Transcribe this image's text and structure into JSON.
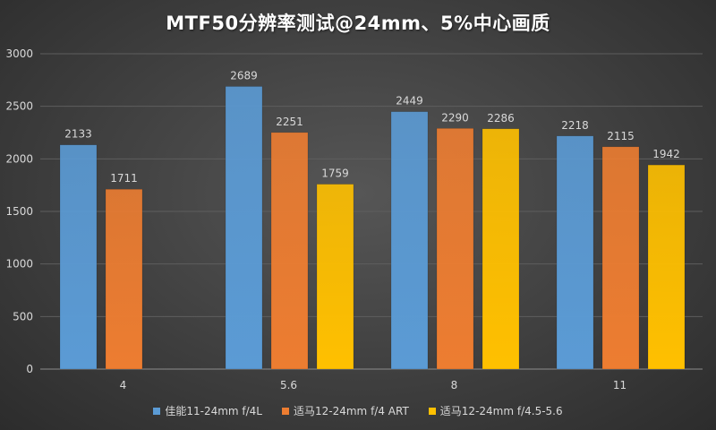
{
  "chart_data": {
    "type": "bar",
    "title": "MTF50分辨率测试@24mm、5%中心画质",
    "xlabel": "",
    "ylabel": "",
    "categories": [
      "4",
      "5.6",
      "8",
      "11"
    ],
    "ylim": [
      0,
      3000
    ],
    "yticks": [
      0,
      500,
      1000,
      1500,
      2000,
      2500,
      3000
    ],
    "grid": true,
    "legend_position": "bottom",
    "series": [
      {
        "name": "佳能11-24mm f/4L",
        "color": "#5b9bd5",
        "values": [
          2133,
          2689,
          2449,
          2218
        ]
      },
      {
        "name": "适马12-24mm f/4 ART",
        "color": "#ed7d31",
        "values": [
          1711,
          2251,
          2290,
          2115
        ]
      },
      {
        "name": "适马12-24mm f/4.5-5.6",
        "color": "#ffc000",
        "values": [
          null,
          1759,
          2286,
          1942
        ]
      }
    ]
  }
}
